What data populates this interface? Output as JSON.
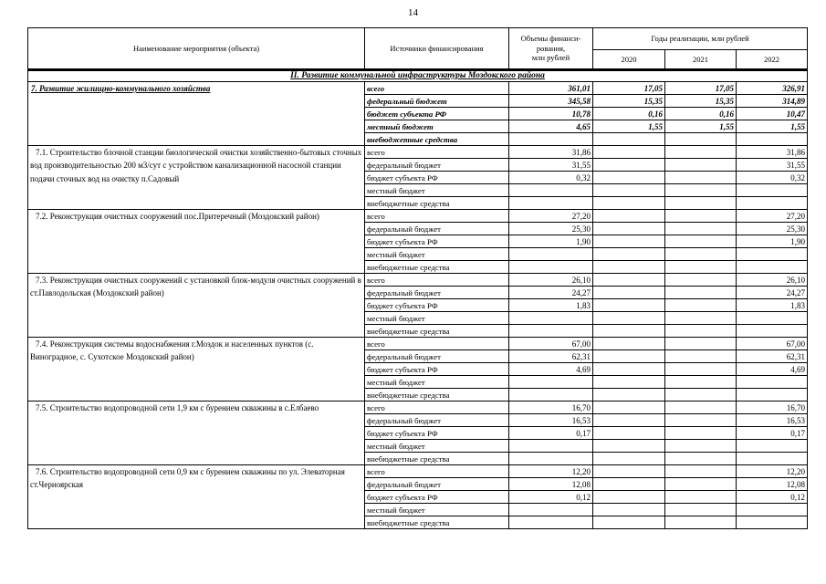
{
  "page": {
    "number": "14"
  },
  "table": {
    "header": {
      "name_col": "Наименование мероприятия (объекта)",
      "sources_col": "Источники финансирования",
      "volume_col": "Объемы финанси-\nрования,\nмлн рублей",
      "years_group": "Годы реализации, млн рублей",
      "years": [
        "2020",
        "2021",
        "2022"
      ]
    },
    "section_title": "II. Развитие коммунальной инфраструктуры Моздокского района",
    "groups": [
      {
        "name": "7. Развитие жилищно-коммунального хозяйства",
        "emphasis": true,
        "rows": [
          {
            "source": "всего",
            "values": [
              "361,01",
              "17,05",
              "17,05",
              "326,91"
            ]
          },
          {
            "source": "федеральный бюджет",
            "values": [
              "345,58",
              "15,35",
              "15,35",
              "314,89"
            ]
          },
          {
            "source": "бюджет субъекта РФ",
            "values": [
              "10,78",
              "0,16",
              "0,16",
              "10,47"
            ]
          },
          {
            "source": "местный бюджет",
            "values": [
              "4,65",
              "1,55",
              "1,55",
              "1,55"
            ]
          },
          {
            "source": "внебюджетные средства",
            "values": [
              "",
              "",
              "",
              ""
            ]
          }
        ]
      },
      {
        "name": "7.1. Строительство блочной станции биологической очистки хозяйственно-бытовых сточных вод производительностью 200 м3/сут с устройством канализационной насосной станции подачи сточных вод на очистку п.Садовый",
        "emphasis": false,
        "rows": [
          {
            "source": "всего",
            "values": [
              "31,86",
              "",
              "",
              "31,86"
            ]
          },
          {
            "source": "федеральный бюджет",
            "values": [
              "31,55",
              "",
              "",
              "31,55"
            ]
          },
          {
            "source": "бюджет субъекта РФ",
            "values": [
              "0,32",
              "",
              "",
              "0,32"
            ]
          },
          {
            "source": "местный бюджет",
            "values": [
              "",
              "",
              "",
              ""
            ]
          },
          {
            "source": "внебюджетные средства",
            "values": [
              "",
              "",
              "",
              ""
            ]
          }
        ]
      },
      {
        "name": "7.2. Реконструкция очистных сооружений пос.Притеречный (Моздокский район)",
        "emphasis": false,
        "rows": [
          {
            "source": "всего",
            "values": [
              "27,20",
              "",
              "",
              "27,20"
            ]
          },
          {
            "source": "федеральный бюджет",
            "values": [
              "25,30",
              "",
              "",
              "25,30"
            ]
          },
          {
            "source": "бюджет субъекта РФ",
            "values": [
              "1,90",
              "",
              "",
              "1,90"
            ]
          },
          {
            "source": "местный бюджет",
            "values": [
              "",
              "",
              "",
              ""
            ]
          },
          {
            "source": "внебюджетные средства",
            "values": [
              "",
              "",
              "",
              ""
            ]
          }
        ]
      },
      {
        "name": "7.3. Реконструкция очистных сооружений  с установкой блок-модуля очистных сооружений в ст.Павлодольская  (Моздокский район)",
        "emphasis": false,
        "rows": [
          {
            "source": "всего",
            "values": [
              "26,10",
              "",
              "",
              "26,10"
            ]
          },
          {
            "source": "федеральный бюджет",
            "values": [
              "24,27",
              "",
              "",
              "24,27"
            ]
          },
          {
            "source": "бюджет субъекта РФ",
            "values": [
              "1,83",
              "",
              "",
              "1,83"
            ]
          },
          {
            "source": "местный бюджет",
            "values": [
              "",
              "",
              "",
              ""
            ]
          },
          {
            "source": "внебюджетные средства",
            "values": [
              "",
              "",
              "",
              ""
            ]
          }
        ]
      },
      {
        "name": "7.4. Реконструкция системы водоснабжения г.Моздок и населенных пунктов (с. Виноградное, с. Сухотское Моздокский район)",
        "emphasis": false,
        "rows": [
          {
            "source": "всего",
            "values": [
              "67,00",
              "",
              "",
              "67,00"
            ]
          },
          {
            "source": "федеральный бюджет",
            "values": [
              "62,31",
              "",
              "",
              "62,31"
            ]
          },
          {
            "source": "бюджет субъекта РФ",
            "values": [
              "4,69",
              "",
              "",
              "4,69"
            ]
          },
          {
            "source": "местный бюджет",
            "values": [
              "",
              "",
              "",
              ""
            ]
          },
          {
            "source": "внебюджетные средства",
            "values": [
              "",
              "",
              "",
              ""
            ]
          }
        ]
      },
      {
        "name": "7.5. Строительство водопроводной сети 1,9 км с бурением скважины в с.Елбаево",
        "emphasis": false,
        "rows": [
          {
            "source": "всего",
            "values": [
              "16,70",
              "",
              "",
              "16,70"
            ]
          },
          {
            "source": "федеральный бюджет",
            "values": [
              "16,53",
              "",
              "",
              "16,53"
            ]
          },
          {
            "source": "бюджет субъекта РФ",
            "values": [
              "0,17",
              "",
              "",
              "0,17"
            ]
          },
          {
            "source": "местный бюджет",
            "values": [
              "",
              "",
              "",
              ""
            ]
          },
          {
            "source": "внебюджетные средства",
            "values": [
              "",
              "",
              "",
              ""
            ]
          }
        ]
      },
      {
        "name": "7.6. Строительство водопроводной сети 0,9 км с бурением скважины по ул. Элеваторная ст.Черноярская",
        "emphasis": false,
        "rows": [
          {
            "source": "всего",
            "values": [
              "12,20",
              "",
              "",
              "12,20"
            ]
          },
          {
            "source": "федеральный бюджет",
            "values": [
              "12,08",
              "",
              "",
              "12,08"
            ]
          },
          {
            "source": "бюджет субъекта РФ",
            "values": [
              "0,12",
              "",
              "",
              "0,12"
            ]
          },
          {
            "source": "местный бюджет",
            "values": [
              "",
              "",
              "",
              ""
            ]
          },
          {
            "source": "внебюджетные средства",
            "values": [
              "",
              "",
              "",
              ""
            ]
          }
        ]
      }
    ]
  }
}
